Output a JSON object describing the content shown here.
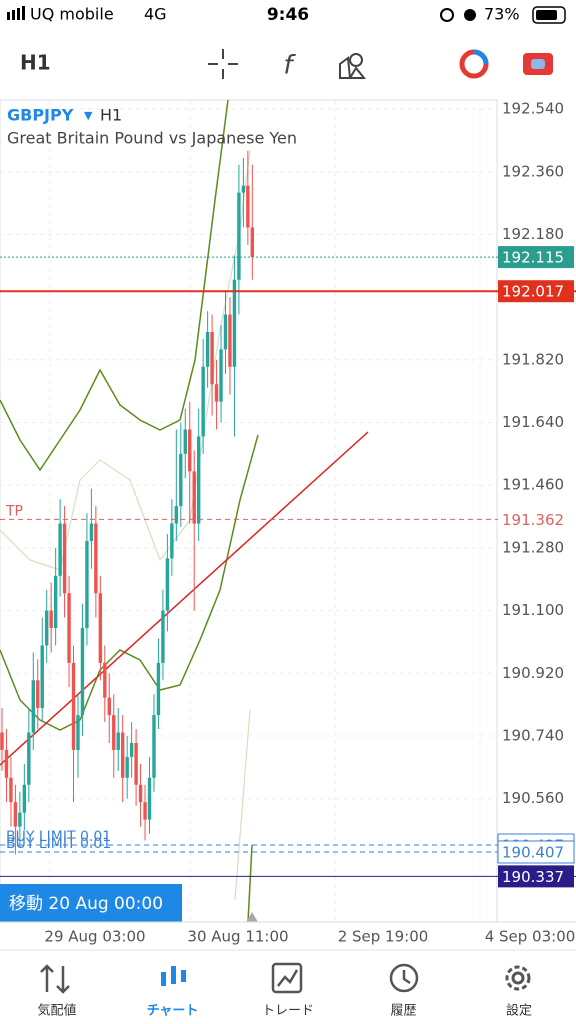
{
  "status_bar": {
    "carrier": "UQ mobile",
    "network": "4G",
    "time": "9:46",
    "battery": "73%"
  },
  "toolbar": {
    "timeframe": "H1"
  },
  "chart": {
    "symbol": "GBPJPY",
    "timeframe": "H1",
    "description": "Great Britain Pound vs Japanese Yen",
    "ylim": [
      190.206,
      192.566
    ],
    "yticks": [
      {
        "value": 192.54,
        "label": "192.540"
      },
      {
        "value": 192.36,
        "label": "192.360"
      },
      {
        "value": 192.18,
        "label": "192.180"
      },
      {
        "value": 191.82,
        "label": "191.820"
      },
      {
        "value": 191.64,
        "label": "191.640"
      },
      {
        "value": 191.46,
        "label": "191.460"
      },
      {
        "value": 191.28,
        "label": "191.280"
      },
      {
        "value": 191.1,
        "label": "191.100"
      },
      {
        "value": 190.92,
        "label": "190.920"
      },
      {
        "value": 190.74,
        "label": "190.740"
      },
      {
        "value": 190.56,
        "label": "190.560"
      }
    ],
    "xticks": [
      "29 Aug 03:00",
      "30 Aug 11:00",
      "2 Sep 19:00",
      "4 Sep 03:00"
    ],
    "price_lines": [
      {
        "value": 192.115,
        "style": "bid",
        "color": "#2a9d8f"
      },
      {
        "value": 192.017,
        "style": "solid",
        "color": "#e0301e"
      },
      {
        "value": 191.362,
        "style": "tp",
        "color": "#e06060",
        "label": "TP"
      },
      {
        "value": 190.427,
        "style": "limit",
        "color": "#3b82d6",
        "label": "BUY LIMIT 0.01"
      },
      {
        "value": 190.407,
        "style": "limit",
        "color": "#3b82d6",
        "label": "BUY LIMIT 0.01"
      },
      {
        "value": 190.337,
        "style": "cursor",
        "color": "#2a1d8a"
      }
    ],
    "cursor_label": "移動 20 Aug 00:00",
    "open": [
      190.75,
      190.7,
      190.62,
      190.55,
      190.48,
      190.52,
      190.6,
      190.75,
      190.9,
      190.82,
      191.0,
      191.1,
      191.05,
      191.2,
      191.35,
      191.15,
      190.95,
      190.7,
      190.8,
      191.05,
      191.3,
      191.35,
      191.15,
      190.95,
      190.85,
      190.8,
      190.7,
      190.75,
      190.62,
      190.68,
      190.72,
      190.6,
      190.55,
      190.5,
      190.62,
      190.8,
      190.95,
      191.1,
      191.25,
      191.35,
      191.4,
      191.55,
      191.62,
      191.5,
      191.35,
      191.6,
      191.8,
      191.9,
      191.75,
      191.7,
      191.85,
      191.95,
      191.8,
      192.05,
      192.3,
      192.32,
      192.2
    ],
    "high": [
      190.82,
      190.76,
      190.68,
      190.6,
      190.58,
      190.66,
      190.82,
      190.98,
      190.96,
      191.08,
      191.16,
      191.18,
      191.28,
      191.42,
      191.4,
      191.2,
      191.0,
      190.86,
      191.12,
      191.38,
      191.45,
      191.4,
      191.2,
      191.0,
      190.92,
      190.86,
      190.82,
      190.8,
      190.74,
      190.78,
      190.76,
      190.66,
      190.6,
      190.68,
      190.86,
      191.02,
      191.16,
      191.32,
      191.42,
      191.62,
      191.64,
      191.68,
      191.7,
      191.56,
      191.68,
      191.88,
      191.96,
      191.95,
      191.82,
      191.92,
      192.02,
      192.0,
      192.12,
      192.38,
      192.4,
      192.42,
      192.38
    ],
    "low": [
      190.64,
      190.55,
      190.48,
      190.4,
      190.42,
      190.47,
      190.55,
      190.7,
      190.76,
      190.78,
      190.95,
      190.98,
      191.0,
      191.14,
      191.08,
      190.88,
      190.55,
      190.62,
      190.74,
      191.0,
      191.22,
      191.08,
      190.9,
      190.78,
      190.72,
      190.62,
      190.64,
      190.55,
      190.56,
      190.62,
      190.54,
      190.48,
      190.44,
      190.46,
      190.58,
      190.76,
      190.9,
      191.04,
      191.2,
      191.3,
      191.34,
      191.48,
      191.35,
      191.1,
      191.3,
      191.55,
      191.74,
      191.66,
      191.62,
      191.64,
      191.78,
      191.72,
      191.6,
      191.95,
      192.2,
      192.15,
      192.05
    ],
    "close": [
      190.7,
      190.62,
      190.55,
      190.48,
      190.52,
      190.6,
      190.75,
      190.9,
      190.82,
      191.0,
      191.1,
      191.05,
      191.2,
      191.35,
      191.15,
      190.95,
      190.7,
      190.8,
      191.05,
      191.3,
      191.35,
      191.15,
      190.95,
      190.85,
      190.8,
      190.7,
      190.75,
      190.62,
      190.68,
      190.72,
      190.6,
      190.55,
      190.5,
      190.62,
      190.8,
      190.95,
      191.1,
      191.25,
      191.35,
      191.4,
      191.55,
      191.62,
      191.5,
      191.35,
      191.6,
      191.8,
      191.9,
      191.75,
      191.7,
      191.85,
      191.95,
      191.8,
      192.05,
      192.3,
      192.32,
      192.2,
      192.115
    ],
    "up_color": "#26a69a",
    "down_color": "#ef5350"
  },
  "tabs": [
    {
      "label": "気配値"
    },
    {
      "label": "チャート",
      "active": true
    },
    {
      "label": "トレード"
    },
    {
      "label": "履歴"
    },
    {
      "label": "設定"
    }
  ]
}
